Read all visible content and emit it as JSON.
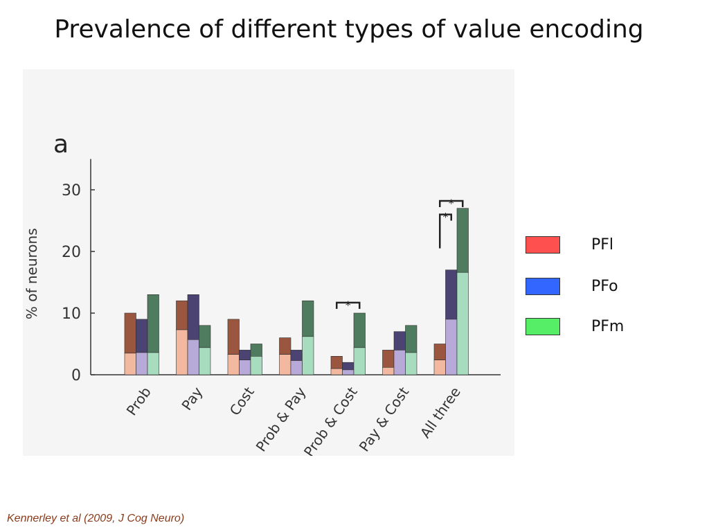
{
  "slide": {
    "title": "Prevalence of different types of value encoding",
    "citation": "Kennerley et al (2009, J Cog Neuro)"
  },
  "legend": [
    {
      "label": "PFl",
      "color": "#ff5050"
    },
    {
      "label": "PFo",
      "color": "#3366ff"
    },
    {
      "label": "PFm",
      "color": "#55ee66"
    }
  ],
  "chart_data": {
    "type": "bar",
    "panel_label": "a",
    "ylabel": "% of neurons",
    "xlabel": "",
    "ylim": [
      0,
      35
    ],
    "yticks": [
      0,
      10,
      20,
      30
    ],
    "categories": [
      "Prob",
      "Pay",
      "Cost",
      "Prob & Pay",
      "Prob & Cost",
      "Pay & Cost",
      "All three"
    ],
    "series": [
      {
        "name": "PFl",
        "values": [
          10,
          12,
          9,
          6,
          3,
          4,
          5
        ],
        "lower_values": [
          3.5,
          7.3,
          3.3,
          3.3,
          1,
          1.2,
          2.4
        ],
        "color_top": "#9b563f",
        "color_bottom": "#f2b9a0"
      },
      {
        "name": "PFo",
        "values": [
          9,
          13,
          4,
          4,
          2,
          7,
          17
        ],
        "lower_values": [
          3.6,
          5.7,
          2.4,
          2.3,
          0.8,
          4,
          9
        ],
        "color_top": "#4b4472",
        "color_bottom": "#b7aad8"
      },
      {
        "name": "PFm",
        "values": [
          13,
          8,
          5,
          12,
          10,
          8,
          27
        ],
        "lower_values": [
          3.6,
          4.4,
          3,
          6.2,
          4.4,
          3.6,
          16.6
        ],
        "color_top": "#4f7c5e",
        "color_bottom": "#a8dcbe"
      }
    ],
    "annotations": [
      {
        "text": "*",
        "category": "Prob & Cost",
        "type": "bracket"
      },
      {
        "text": "*",
        "category": "All three",
        "type": "bracket"
      },
      {
        "text": "*",
        "category": "All three",
        "type": "bracket"
      }
    ]
  }
}
